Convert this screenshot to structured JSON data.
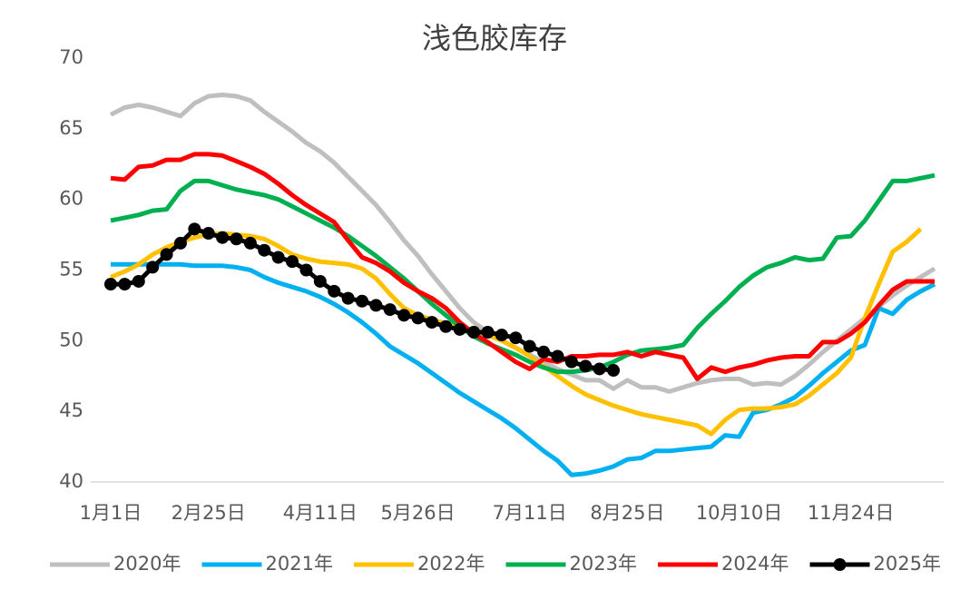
{
  "chart_data": {
    "type": "line",
    "title": "浅色胶库存",
    "categories": [
      "1月1日",
      null,
      null,
      null,
      null,
      null,
      null,
      "2月25日",
      null,
      null,
      null,
      null,
      null,
      null,
      null,
      "4月11日",
      null,
      null,
      null,
      null,
      null,
      null,
      "5月26日",
      null,
      null,
      null,
      null,
      null,
      null,
      null,
      "7月11日",
      null,
      null,
      null,
      null,
      null,
      null,
      "8月25日",
      null,
      null,
      null,
      null,
      null,
      null,
      null,
      "10月10日",
      null,
      null,
      null,
      null,
      null,
      null,
      null,
      "11月24日",
      null,
      null,
      null,
      null,
      null,
      null
    ],
    "ylim": [
      40,
      70
    ],
    "yticks": [
      40,
      45,
      50,
      55,
      60,
      65,
      70
    ],
    "grid": false,
    "legend": "bottom",
    "series": [
      {
        "name": "2020年",
        "color": "#bfbfbf",
        "values": [
          66.0,
          66.5,
          66.7,
          66.5,
          66.2,
          65.9,
          66.8,
          67.3,
          67.4,
          67.3,
          67.0,
          66.2,
          65.5,
          64.8,
          64.0,
          63.4,
          62.6,
          61.6,
          60.6,
          59.6,
          58.4,
          57.1,
          56.0,
          54.7,
          53.5,
          52.3,
          51.3,
          50.6,
          50.0,
          49.5,
          49.0,
          48.5,
          48.0,
          47.6,
          47.2,
          47.2,
          46.6,
          47.2,
          46.7,
          46.7,
          46.4,
          46.7,
          47.0,
          47.2,
          47.3,
          47.3,
          46.9,
          47.0,
          46.9,
          47.5,
          48.3,
          49.2,
          50.0,
          50.8,
          51.6,
          52.4,
          53.2,
          53.9,
          54.5,
          55.1
        ]
      },
      {
        "name": "2021年",
        "color": "#00b0f0",
        "values": [
          55.4,
          55.4,
          55.4,
          55.4,
          55.4,
          55.4,
          55.3,
          55.3,
          55.3,
          55.2,
          55.0,
          54.5,
          54.1,
          53.8,
          53.5,
          53.1,
          52.6,
          52.0,
          51.3,
          50.5,
          49.6,
          49.0,
          48.4,
          47.7,
          47.0,
          46.3,
          45.7,
          45.1,
          44.5,
          43.8,
          43.0,
          42.2,
          41.5,
          40.5,
          40.6,
          40.8,
          41.1,
          41.6,
          41.7,
          42.2,
          42.2,
          42.3,
          42.4,
          42.5,
          43.3,
          43.2,
          44.9,
          45.1,
          45.5,
          46.0,
          46.8,
          47.7,
          48.5,
          49.3,
          49.7,
          52.3,
          51.9,
          52.9,
          53.5,
          54.0
        ]
      },
      {
        "name": "2022年",
        "color": "#ffc000",
        "values": [
          54.5,
          54.9,
          55.4,
          56.1,
          56.6,
          57.0,
          57.3,
          57.5,
          57.6,
          57.5,
          57.4,
          57.2,
          56.7,
          56.1,
          55.8,
          55.6,
          55.5,
          55.4,
          55.1,
          54.4,
          53.3,
          52.3,
          51.8,
          51.5,
          51.2,
          51.0,
          50.7,
          50.4,
          50.0,
          49.5,
          48.9,
          48.2,
          47.5,
          46.8,
          46.2,
          45.8,
          45.4,
          45.1,
          44.8,
          44.6,
          44.4,
          44.2,
          44.0,
          43.4,
          44.4,
          45.1,
          45.2,
          45.2,
          45.3,
          45.5,
          46.1,
          46.9,
          47.7,
          48.8,
          51.6,
          54.0,
          56.3,
          57.0,
          57.9,
          null
        ]
      },
      {
        "name": "2023年",
        "color": "#00b050",
        "values": [
          58.5,
          58.7,
          58.9,
          59.2,
          59.3,
          60.6,
          61.3,
          61.3,
          61.0,
          60.7,
          60.5,
          60.3,
          60.0,
          59.5,
          59.0,
          58.5,
          58.0,
          57.4,
          56.7,
          56.0,
          55.2,
          54.4,
          53.5,
          52.6,
          51.8,
          51.0,
          50.3,
          49.8,
          49.4,
          49.0,
          48.5,
          48.1,
          47.8,
          47.8,
          47.9,
          48.1,
          48.5,
          49.0,
          49.3,
          49.4,
          49.5,
          49.7,
          50.9,
          51.9,
          52.8,
          53.8,
          54.6,
          55.2,
          55.5,
          55.9,
          55.7,
          55.8,
          57.3,
          57.4,
          58.5,
          59.9,
          61.3,
          61.3,
          61.5,
          61.7
        ]
      },
      {
        "name": "2024年",
        "color": "#ff0000",
        "values": [
          61.5,
          61.4,
          62.3,
          62.4,
          62.8,
          62.8,
          63.2,
          63.2,
          63.1,
          62.7,
          62.3,
          61.8,
          61.1,
          60.3,
          59.6,
          59.0,
          58.4,
          57.1,
          55.9,
          55.5,
          54.9,
          54.1,
          53.5,
          53.0,
          52.3,
          51.3,
          50.5,
          49.9,
          49.2,
          48.5,
          48.0,
          48.7,
          48.5,
          48.9,
          48.9,
          49.0,
          49.0,
          49.2,
          48.9,
          49.2,
          49.0,
          48.8,
          47.3,
          48.1,
          47.8,
          48.1,
          48.3,
          48.6,
          48.8,
          48.9,
          48.9,
          49.9,
          49.9,
          50.5,
          51.3,
          52.5,
          53.6,
          54.2,
          54.2,
          54.2
        ]
      },
      {
        "name": "2025年",
        "color": "#000000",
        "markers": true,
        "values": [
          54.0,
          54.0,
          54.2,
          55.2,
          56.1,
          56.9,
          57.9,
          57.6,
          57.3,
          57.2,
          56.9,
          56.4,
          55.9,
          55.6,
          55.0,
          54.2,
          53.5,
          53.0,
          52.8,
          52.5,
          52.2,
          51.8,
          51.6,
          51.3,
          51.0,
          50.8,
          50.6,
          50.6,
          50.4,
          50.2,
          49.6,
          49.2,
          48.9,
          48.5,
          48.2,
          48.0,
          47.9,
          null,
          null,
          null,
          null,
          null,
          null,
          null,
          null,
          null,
          null,
          null,
          null,
          null,
          null,
          null,
          null,
          null,
          null,
          null,
          null,
          null,
          null,
          null
        ]
      }
    ]
  }
}
